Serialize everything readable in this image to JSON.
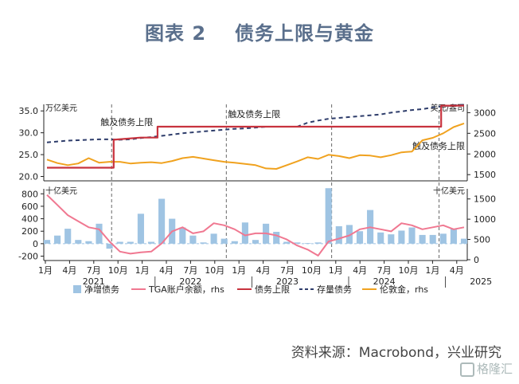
{
  "header": {
    "number": "图表 2",
    "title": "债务上限与黄金"
  },
  "footer": {
    "source": "资料来源：Macrobond，兴业研究",
    "watermark": "格隆汇"
  },
  "colors": {
    "debt_limit": "#c8333e",
    "debt_stock": "#2e3d6b",
    "gold": "#f0a21f",
    "net_issuance": "#9fc4e3",
    "tga": "#f07891",
    "axis": "#222222",
    "vline": "#666666"
  },
  "chart_data": [
    {
      "type": "line",
      "panel": "top",
      "y_unit_left": "万亿美元",
      "y_unit_right": "美元/盎司",
      "ylim": [
        19,
        36.5
      ],
      "yticks": [
        20.0,
        25.0,
        30.0,
        35.0
      ],
      "ylim_right": [
        1350,
        3200
      ],
      "yticks_right": [
        1500,
        2000,
        2500,
        3000
      ],
      "annotations": [
        "触及债务上限",
        "触及债务上限",
        "触及债务上限"
      ],
      "series": [
        {
          "name": "债务上限",
          "axis": "left",
          "step": true,
          "x": [
            0,
            6.4,
            6.4,
            9,
            10.6,
            10.6,
            37.8,
            37.8,
            40
          ],
          "values": [
            22.0,
            22.0,
            28.4,
            28.9,
            28.9,
            31.4,
            31.4,
            36.2,
            36.2
          ]
        },
        {
          "name": "存量债务",
          "axis": "left",
          "dashed": true,
          "x": [
            0,
            1,
            2,
            3,
            4,
            5,
            6,
            7,
            8,
            9,
            10,
            11,
            12,
            13,
            14,
            15,
            16,
            17,
            18,
            19,
            20,
            21,
            22,
            23,
            24,
            25,
            26,
            27,
            28,
            29,
            30,
            31,
            32,
            33,
            34,
            35,
            36,
            37,
            38,
            39,
            40
          ],
          "values": [
            27.8,
            28.0,
            28.2,
            28.3,
            28.4,
            28.5,
            28.5,
            28.4,
            28.5,
            28.8,
            29.0,
            29.3,
            29.6,
            29.9,
            30.1,
            30.3,
            30.5,
            30.7,
            30.9,
            31.0,
            31.2,
            31.4,
            31.4,
            31.4,
            31.4,
            32.3,
            32.8,
            33.2,
            33.4,
            33.6,
            33.8,
            34.0,
            34.2,
            34.6,
            34.9,
            35.2,
            35.4,
            35.8,
            36.1,
            36.3,
            36.4
          ]
        },
        {
          "name": "伦敦金，rhs",
          "axis": "right",
          "x": [
            0,
            1,
            2,
            3,
            4,
            5,
            6,
            7,
            8,
            9,
            10,
            11,
            12,
            13,
            14,
            15,
            16,
            17,
            18,
            19,
            20,
            21,
            22,
            23,
            24,
            25,
            26,
            27,
            28,
            29,
            30,
            31,
            32,
            33,
            34,
            35,
            36,
            37,
            38,
            39,
            40
          ],
          "values": [
            1865,
            1780,
            1730,
            1770,
            1900,
            1790,
            1810,
            1810,
            1770,
            1790,
            1800,
            1780,
            1830,
            1900,
            1930,
            1890,
            1850,
            1810,
            1790,
            1760,
            1730,
            1650,
            1640,
            1730,
            1820,
            1920,
            1880,
            1980,
            1950,
            1900,
            1970,
            1960,
            1920,
            1970,
            2040,
            2060,
            2330,
            2390,
            2500,
            2650,
            2740
          ]
        }
      ]
    },
    {
      "type": "bar",
      "panel": "bottom",
      "y_unit_left": "十亿美元",
      "y_unit_right": "十亿美元",
      "ylim": [
        -270,
        880
      ],
      "yticks": [
        -200,
        0,
        200,
        400,
        600,
        800
      ],
      "ylim_right": [
        -20,
        1750
      ],
      "yticks_right": [
        0,
        500,
        1000,
        1500
      ],
      "x_ticks": [
        "1月",
        "4月",
        "7月",
        "10月",
        "1月",
        "4月",
        "7月",
        "10月",
        "1月",
        "4月",
        "7月",
        "10月",
        "1月",
        "4月",
        "7月",
        "10月",
        "1月",
        "4月"
      ],
      "x_years": [
        "2021",
        "2022",
        "2023",
        "2024",
        "2025"
      ],
      "series": [
        {
          "name": "净增债务",
          "x": [
            0,
            1,
            2,
            3,
            4,
            5,
            6,
            7,
            8,
            9,
            10,
            11,
            12,
            13,
            14,
            15,
            16,
            17,
            18,
            19,
            20,
            21,
            22,
            23,
            24,
            25,
            26,
            27,
            28,
            29,
            30,
            31,
            32,
            33,
            34,
            35,
            36,
            37,
            38,
            39,
            40
          ],
          "values": [
            60,
            130,
            240,
            60,
            40,
            320,
            -80,
            30,
            30,
            480,
            30,
            720,
            400,
            260,
            130,
            20,
            160,
            80,
            40,
            340,
            60,
            320,
            190,
            30,
            20,
            10,
            20,
            890,
            280,
            300,
            200,
            540,
            180,
            150,
            210,
            260,
            140,
            140,
            160,
            240,
            80
          ]
        },
        {
          "name": "TGA账户余额，rhs",
          "axis": "right",
          "x": [
            0,
            1,
            2,
            3,
            4,
            5,
            6,
            7,
            8,
            9,
            10,
            11,
            12,
            13,
            14,
            15,
            16,
            17,
            18,
            19,
            20,
            21,
            22,
            23,
            24,
            25,
            26,
            27,
            28,
            29,
            30,
            31,
            32,
            33,
            34,
            35,
            36,
            37,
            38,
            39,
            40
          ],
          "values": [
            1600,
            1350,
            1100,
            950,
            800,
            750,
            450,
            200,
            150,
            180,
            200,
            400,
            700,
            800,
            650,
            700,
            900,
            850,
            750,
            600,
            650,
            650,
            600,
            500,
            350,
            250,
            100,
            450,
            520,
            600,
            750,
            800,
            750,
            700,
            900,
            850,
            750,
            800,
            850,
            750,
            800
          ]
        }
      ]
    }
  ],
  "legend": [
    "净增债务",
    "TGA账户余额，rhs",
    "债务上限",
    "存量债务",
    "伦敦金，rhs"
  ]
}
